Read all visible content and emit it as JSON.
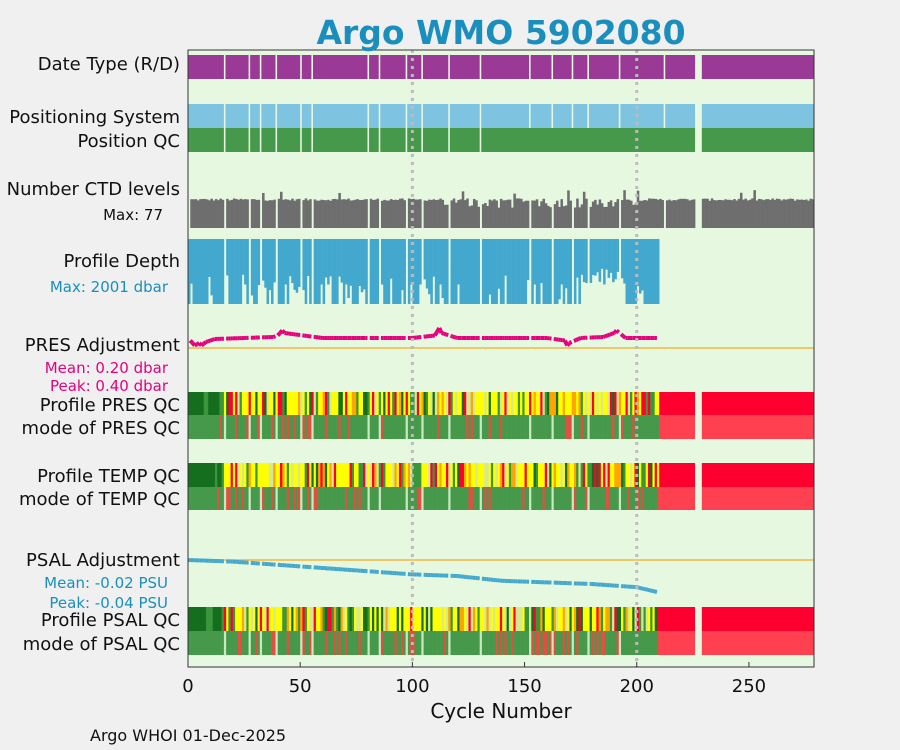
{
  "chart_data": {
    "type": "bar",
    "title": "Argo WMO 5902080",
    "xlabel": "Cycle Number",
    "xlim": [
      0,
      279
    ],
    "xticks": [
      0,
      50,
      100,
      150,
      200,
      250
    ],
    "grid_x": [
      100,
      200
    ],
    "footer": "Argo WHOI 01-Dec-2025",
    "gaps": [
      [
        226,
        229
      ]
    ],
    "profile_end": 210,
    "row_labels": {
      "date_type": "Date Type (R/D)",
      "positioning": "Positioning System",
      "position_qc": "Position QC",
      "ctd_levels": "Number CTD levels",
      "profile_depth": "Profile Depth",
      "pres_adj": "PRES Adjustment",
      "pres_qc": "Profile PRES QC",
      "pres_mode": "mode of PRES QC",
      "temp_qc": "Profile TEMP QC",
      "temp_mode": "mode of TEMP QC",
      "psal_adj": "PSAL Adjustment",
      "psal_qc": "Profile PSAL QC",
      "psal_mode": "mode of PSAL QC"
    },
    "annotations": {
      "ctd_max": "Max: 77",
      "depth_max": "Max: 2001 dbar",
      "pres_mean": "Mean: 0.20 dbar",
      "pres_peak": "Peak: 0.40 dbar",
      "psal_mean": "Mean: -0.02 PSU",
      "psal_peak": "Peak: -0.04 PSU"
    },
    "date_type_breaks": [
      16,
      27,
      32,
      39,
      50,
      55,
      80,
      85,
      97,
      104,
      116,
      130,
      152,
      162,
      171,
      178,
      192,
      212
    ],
    "position_qc_breaks": [
      142
    ],
    "ctd_levels_max": 77,
    "profile_depth_max_dbar": 2001,
    "pres_adjustment_series": [
      [
        1,
        0.15
      ],
      [
        3,
        0.05
      ],
      [
        5,
        0.1
      ],
      [
        6,
        0.05
      ],
      [
        8,
        0.12
      ],
      [
        12,
        0.18
      ],
      [
        25,
        0.2
      ],
      [
        38,
        0.22
      ],
      [
        40,
        0.25
      ],
      [
        42,
        0.35
      ],
      [
        43,
        0.3
      ],
      [
        60,
        0.2
      ],
      [
        80,
        0.2
      ],
      [
        100,
        0.2
      ],
      [
        110,
        0.25
      ],
      [
        112,
        0.4
      ],
      [
        113,
        0.3
      ],
      [
        120,
        0.2
      ],
      [
        140,
        0.2
      ],
      [
        150,
        0.2
      ],
      [
        160,
        0.2
      ],
      [
        168,
        0.15
      ],
      [
        169,
        0.05
      ],
      [
        170,
        0.1
      ],
      [
        175,
        0.2
      ],
      [
        185,
        0.22
      ],
      [
        190,
        0.3
      ],
      [
        191,
        0.35
      ],
      [
        195,
        0.2
      ],
      [
        209,
        0.2
      ]
    ],
    "psal_adjustment_series": [
      [
        0,
        0.0
      ],
      [
        20,
        -0.002
      ],
      [
        40,
        -0.006
      ],
      [
        60,
        -0.01
      ],
      [
        80,
        -0.014
      ],
      [
        100,
        -0.018
      ],
      [
        120,
        -0.02
      ],
      [
        140,
        -0.026
      ],
      [
        160,
        -0.028
      ],
      [
        180,
        -0.03
      ],
      [
        200,
        -0.034
      ],
      [
        209,
        -0.04
      ]
    ],
    "pres_adj_ylim": [
      -0.4,
      0.6
    ],
    "psal_adj_ylim": [
      -0.05,
      0.025
    ]
  },
  "colors": {
    "background": "#f0f0f0",
    "plot_background": "#e6f9e0",
    "title": "#1a8fbd",
    "date_type": "#9a3a96",
    "positioning": "#7ec4e0",
    "qc_good": "#46994a",
    "ctd_levels": "#6e6e6e",
    "profile_depth": "#43a8ce",
    "pres_adjustment": "#e6007e",
    "psal_adjustment": "#43a8ce",
    "zero_line": "#f0b840",
    "qc_red": "#fe0030",
    "qc_red_light": "#ff4050",
    "qc_yellow": "#ffff00",
    "qc_orange": "#ffa500",
    "qc_dark_green": "#146e1e",
    "qc_mid_green": "#3a963a"
  }
}
